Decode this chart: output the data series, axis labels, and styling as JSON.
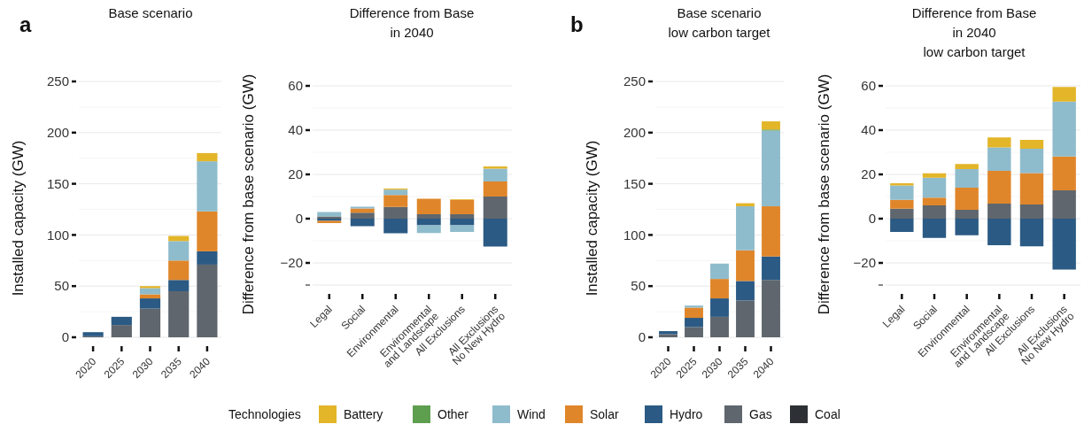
{
  "chart_data": [
    {
      "type": "bar",
      "title": "Base scenario",
      "annotations": [
        "a"
      ],
      "categories": [
        "2020",
        "2025",
        "2030",
        "2035",
        "2040"
      ],
      "ylabel": "Installed capacity (GW)",
      "ylim": [
        0,
        250
      ],
      "yticks": [
        0,
        50,
        100,
        150,
        200,
        250
      ],
      "grid": "y",
      "stacked": true,
      "legend": "bottom",
      "legend_title": "Technologies",
      "series": [
        {
          "name": "Coal",
          "color": "#2d3035",
          "values": [
            0,
            0,
            0,
            0,
            0
          ]
        },
        {
          "name": "Gas",
          "color": "#5f666d",
          "values": [
            1,
            12,
            28,
            45,
            71
          ]
        },
        {
          "name": "Hydro",
          "color": "#2b5a84",
          "values": [
            4,
            8,
            10,
            11,
            13
          ]
        },
        {
          "name": "Solar",
          "color": "#e0862a",
          "values": [
            0,
            0,
            4,
            19,
            39
          ]
        },
        {
          "name": "Wind",
          "color": "#8fbccc",
          "values": [
            0,
            0,
            6,
            19,
            49
          ]
        },
        {
          "name": "Other",
          "color": "#5e9e4f",
          "values": [
            0,
            0,
            0,
            0,
            0
          ]
        },
        {
          "name": "Battery",
          "color": "#e3b529",
          "values": [
            0,
            0,
            2,
            5,
            8
          ]
        }
      ]
    },
    {
      "type": "bar",
      "title": "Difference from Base\nin 2040",
      "categories": [
        "Legal",
        "Social",
        "Environmental",
        "Environmental\nand Landscape",
        "All Exclusions",
        "All Exclusions\nNo New Hydro"
      ],
      "ylabel": "Difference from base scenario (GW)",
      "ylim": [
        -30,
        60
      ],
      "yticks": [
        {
          "value": -30,
          "label": null
        },
        -20,
        0,
        20,
        40,
        60
      ],
      "grid": "y",
      "stacked": true,
      "series": [
        {
          "color": "#5f666d",
          "values": [
            1,
            2.7,
            5.3,
            2,
            2,
            10
          ]
        },
        {
          "color": "#2b5a84",
          "values": [
            -1,
            -3.4,
            -6.6,
            -3,
            -3,
            -12.6
          ]
        },
        {
          "color": "#e0862a",
          "values": [
            -1,
            1.9,
            5.4,
            7,
            6.5,
            6.8
          ]
        },
        {
          "color": "#8fbccc",
          "values": [
            2,
            0.8,
            2.4,
            -3.5,
            -3,
            5.8
          ]
        },
        {
          "color": "#e3b529",
          "values": [
            0,
            0,
            0.5,
            0,
            0.3,
            1
          ]
        }
      ]
    },
    {
      "type": "bar",
      "title": "Base scenario\nlow carbon target",
      "annotations": [
        "b"
      ],
      "categories": [
        "2020",
        "2025",
        "2030",
        "2035",
        "2040"
      ],
      "ylabel": "Installed capacity (GW)",
      "ylim": [
        0,
        250
      ],
      "yticks": [
        0,
        50,
        100,
        150,
        200,
        250
      ],
      "grid": "y",
      "stacked": true,
      "series": [
        {
          "color": "#5f666d",
          "values": [
            3,
            10,
            20,
            36,
            56
          ]
        },
        {
          "color": "#2b5a84",
          "values": [
            3,
            9,
            18,
            19,
            23
          ]
        },
        {
          "color": "#e0862a",
          "values": [
            0,
            10,
            19,
            30,
            49
          ]
        },
        {
          "color": "#8fbccc",
          "values": [
            0,
            2,
            15,
            43,
            74
          ]
        },
        {
          "color": "#5e9e4f",
          "values": [
            0,
            0,
            0,
            0,
            1
          ]
        },
        {
          "color": "#e3b529",
          "values": [
            0,
            0,
            0,
            3,
            8
          ]
        }
      ]
    },
    {
      "type": "bar",
      "title": "Difference from Base\nin 2040\nlow carbon target",
      "categories": [
        "Legal",
        "Social",
        "Environmental",
        "Environmental\nand Landscape",
        "All Exclusions",
        "All Exclusions\nNo New Hydro"
      ],
      "ylabel": "Difference from base scenario (GW)",
      "ylim": [
        -30,
        60
      ],
      "yticks": [
        {
          "value": -30,
          "label": null
        },
        -20,
        0,
        20,
        40,
        60
      ],
      "grid": "y",
      "stacked": true,
      "series": [
        {
          "color": "#5f666d",
          "values": [
            4.5,
            6,
            4,
            6.8,
            6.4,
            12.8
          ]
        },
        {
          "color": "#2b5a84",
          "values": [
            -6,
            -8.7,
            -7.5,
            -12,
            -12.5,
            -23
          ]
        },
        {
          "color": "#e0862a",
          "values": [
            4,
            3.5,
            10,
            14.8,
            14.2,
            15.3
          ]
        },
        {
          "color": "#8fbccc",
          "values": [
            6.5,
            9,
            8.4,
            10.6,
            11,
            24.8
          ]
        },
        {
          "color": "#e3b529",
          "values": [
            1,
            2,
            2.3,
            4.5,
            4,
            6.6
          ]
        }
      ]
    }
  ]
}
